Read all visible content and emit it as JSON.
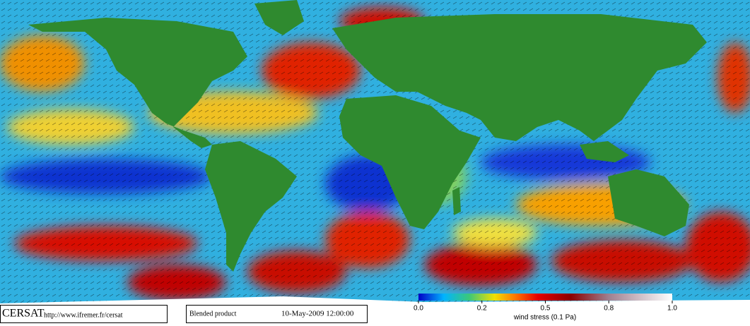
{
  "footer": {
    "logo": "CERSAT",
    "url": "http://www.ifremer.fr/cersat",
    "product": "Blended product",
    "date": "10-May-2009 12:00:00"
  },
  "colorbar": {
    "label": "wind stress (0.1 Pa)",
    "range": [
      0,
      1
    ],
    "ticks": [
      {
        "value": 0,
        "label": "0.0"
      },
      0.2,
      0.5,
      0.8,
      {
        "value": 1,
        "label": "1.0"
      }
    ]
  }
}
